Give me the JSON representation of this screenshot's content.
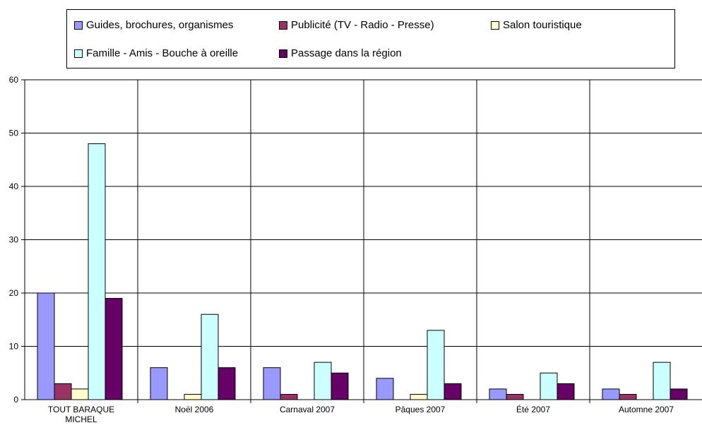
{
  "chart_data": {
    "type": "bar",
    "categories": [
      [
        "TOUT BARAQUE",
        "MICHEL"
      ],
      [
        "Noël 2006"
      ],
      [
        "Carnaval 2007"
      ],
      [
        "Pâques 2007"
      ],
      [
        "Été 2007"
      ],
      [
        "Automne 2007"
      ]
    ],
    "ylim": [
      0,
      60
    ],
    "yticks": [
      "0",
      "10",
      "20",
      "30",
      "40",
      "50",
      "60"
    ],
    "grid": true,
    "legend_position": "top",
    "series": [
      {
        "name": "Guides, brochures, organismes",
        "color": "#9999ff",
        "values": [
          20,
          6,
          6,
          4,
          2,
          2
        ]
      },
      {
        "name": "Publicité (TV - Radio - Presse)",
        "color": "#993366",
        "values": [
          3,
          0,
          1,
          0,
          1,
          1
        ]
      },
      {
        "name": "Salon touristique",
        "color": "#ffffcc",
        "values": [
          2,
          1,
          0,
          1,
          0,
          0
        ]
      },
      {
        "name": "Famille - Amis - Bouche à oreille",
        "color": "#ccffff",
        "values": [
          48,
          16,
          7,
          13,
          5,
          7
        ]
      },
      {
        "name": "Passage dans la région",
        "color": "#660066",
        "values": [
          19,
          6,
          5,
          3,
          3,
          2
        ]
      }
    ]
  }
}
